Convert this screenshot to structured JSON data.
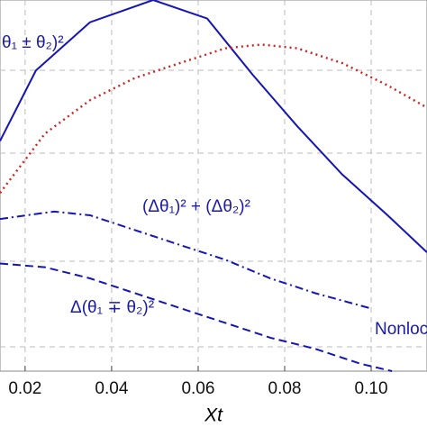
{
  "chart_data": {
    "type": "line",
    "xlabel": "Xt",
    "xlim": [
      0.0142,
      0.1129
    ],
    "ylim": [
      0,
      1
    ],
    "xticks": [
      0.02,
      0.04,
      0.06,
      0.08,
      {
        "value": 0.1,
        "label": "0.10"
      }
    ],
    "grid": true,
    "series": [
      {
        "color": "#1515b5",
        "style": "solid",
        "x": [
          0.0142,
          0.0225,
          0.035,
          0.0496,
          0.0621,
          0.0725,
          0.0829,
          0.0933,
          0.1038,
          0.1129
        ],
        "values": [
          0.62,
          0.81,
          0.94,
          1.0,
          0.95,
          0.8,
          0.66,
          0.53,
          0.42,
          0.32
        ]
      },
      {
        "color": "#cc2222",
        "style": "dotted",
        "x": [
          0.0142,
          0.0246,
          0.035,
          0.0454,
          0.0558,
          0.0663,
          0.0746,
          0.0829,
          0.0933,
          0.1038,
          0.1129
        ],
        "values": [
          0.48,
          0.64,
          0.73,
          0.79,
          0.83,
          0.87,
          0.88,
          0.87,
          0.83,
          0.77,
          0.71
        ]
      },
      {
        "color": "#1515b5",
        "style": "dashdot",
        "x": [
          0.0142,
          0.0204,
          0.0267,
          0.035,
          0.0454,
          0.0558,
          0.0663,
          0.0767,
          0.0871,
          0.0996
        ],
        "values": [
          0.41,
          0.42,
          0.43,
          0.42,
          0.38,
          0.34,
          0.3,
          0.25,
          0.21,
          0.17
        ]
      },
      {
        "color": "#1515b5",
        "style": "dashed",
        "x": [
          0.0142,
          0.0246,
          0.035,
          0.0454,
          0.0558,
          0.0663,
          0.0767,
          0.0871,
          0.0975,
          0.1048
        ],
        "values": [
          0.29,
          0.28,
          0.25,
          0.21,
          0.17,
          0.13,
          0.09,
          0.06,
          0.02,
          0.0
        ]
      }
    ],
    "annotations": [
      "θ₁ ± θ₂)²",
      "(Δθ₁)² + (Δθ₂)²",
      "Δ(θ₁ ∓ θ₂)²",
      "Nonloc"
    ]
  }
}
